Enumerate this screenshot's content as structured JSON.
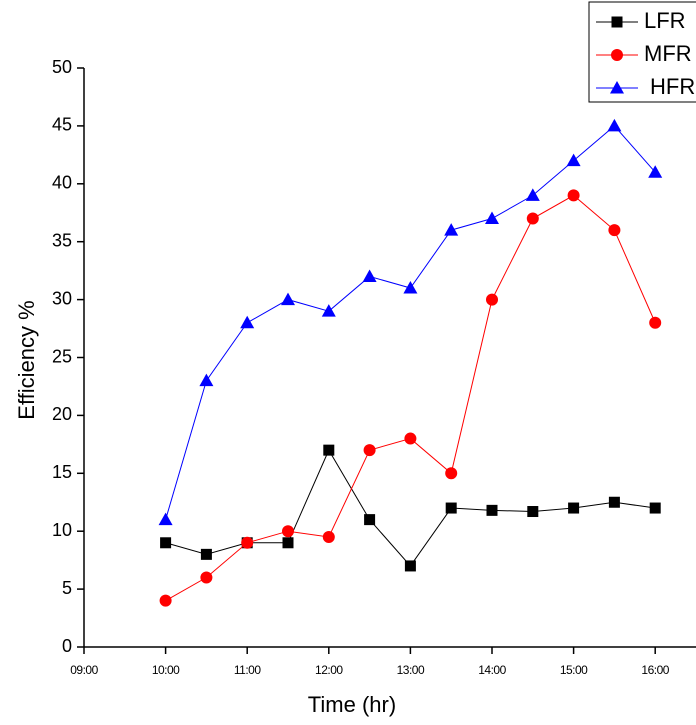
{
  "chart_data": {
    "type": "line",
    "x_label": "Time (hr)",
    "y_label": "Efficiency %",
    "x": [
      10,
      10.5,
      11,
      11.5,
      12,
      12.5,
      13,
      13.5,
      14,
      14.5,
      15,
      15.5,
      16
    ],
    "series": [
      {
        "name": "LFR",
        "color": "#000000",
        "marker": "square",
        "values": [
          9,
          8,
          9,
          9,
          17,
          11,
          7,
          12,
          11.8,
          11.7,
          12,
          12.5,
          12
        ]
      },
      {
        "name": "MFR",
        "color": "#ff0000",
        "marker": "circle",
        "values": [
          4,
          6,
          9,
          10,
          9.5,
          17,
          18,
          15,
          30,
          37,
          39,
          36,
          28
        ]
      },
      {
        "name": "HFR",
        "color": "#0000ff",
        "marker": "triangle",
        "values": [
          11,
          23,
          28,
          30,
          29,
          32,
          31,
          36,
          37,
          39,
          42,
          45,
          41
        ]
      }
    ],
    "xlim": [
      9,
      16.5
    ],
    "xticks": [
      {
        "value": 9,
        "label": "09:00"
      },
      {
        "value": 10,
        "label": "10:00"
      },
      {
        "value": 11,
        "label": "11:00"
      },
      {
        "value": 12,
        "label": "12:00"
      },
      {
        "value": 13,
        "label": "13:00"
      },
      {
        "value": 14,
        "label": "14:00"
      },
      {
        "value": 15,
        "label": "15:00"
      },
      {
        "value": 16,
        "label": "16:00"
      }
    ],
    "ylim": [
      0,
      50
    ],
    "yticks": [
      0,
      5,
      10,
      15,
      20,
      25,
      30,
      35,
      40,
      45,
      50
    ],
    "legend": "top-right"
  }
}
